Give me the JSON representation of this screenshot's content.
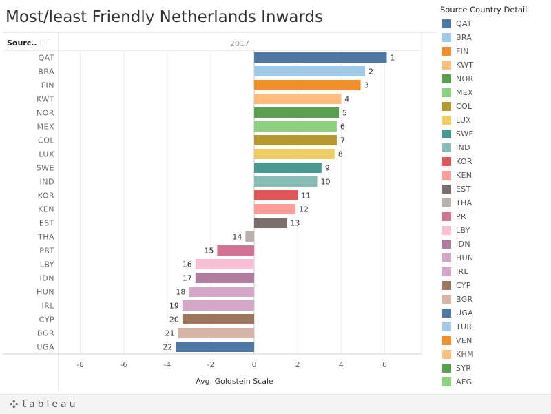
{
  "title": "Most/least Friendly Netherlands Inwards",
  "header": {
    "row_field_label": "Sourc..",
    "sort_icon": "sort-descending-icon",
    "column_value": "2017"
  },
  "legend": {
    "title": "Source Country Detail",
    "items": [
      {
        "label": "QAT",
        "color": "#4e79a7"
      },
      {
        "label": "BRA",
        "color": "#a0cbe8"
      },
      {
        "label": "FIN",
        "color": "#f28e2b"
      },
      {
        "label": "KWT",
        "color": "#ffbe7d"
      },
      {
        "label": "NOR",
        "color": "#59a14f"
      },
      {
        "label": "MEX",
        "color": "#8cd17d"
      },
      {
        "label": "COL",
        "color": "#b6992d"
      },
      {
        "label": "LUX",
        "color": "#f1ce63"
      },
      {
        "label": "SWE",
        "color": "#499894"
      },
      {
        "label": "IND",
        "color": "#86bcb6"
      },
      {
        "label": "KOR",
        "color": "#e15759"
      },
      {
        "label": "KEN",
        "color": "#ff9d9a"
      },
      {
        "label": "EST",
        "color": "#79706e"
      },
      {
        "label": "THA",
        "color": "#bab0ac"
      },
      {
        "label": "PRT",
        "color": "#d37295"
      },
      {
        "label": "LBY",
        "color": "#fabfd2"
      },
      {
        "label": "IDN",
        "color": "#b07aa1"
      },
      {
        "label": "HUN",
        "color": "#d4a6c8"
      },
      {
        "label": "IRL",
        "color": "#d4a6c8"
      },
      {
        "label": "CYP",
        "color": "#9d7660"
      },
      {
        "label": "BGR",
        "color": "#d7b5a6"
      },
      {
        "label": "UGA",
        "color": "#4e79a7"
      },
      {
        "label": "TUR",
        "color": "#a0cbe8"
      },
      {
        "label": "VEN",
        "color": "#f28e2b"
      },
      {
        "label": "KHM",
        "color": "#ffbe7d"
      },
      {
        "label": "SYR",
        "color": "#59a14f"
      },
      {
        "label": "AFG",
        "color": "#8cd17d"
      },
      {
        "label": "",
        "color": "#b6992d"
      }
    ]
  },
  "chart_data": {
    "type": "bar",
    "orientation": "horizontal",
    "title": "Most/least Friendly Netherlands Inwards",
    "column_header": "2017",
    "xlabel": "Avg. Goldstein Scale",
    "xlim": [
      -9,
      7.7
    ],
    "xticks": [
      -8,
      -6,
      -4,
      -2,
      0,
      2,
      4,
      6
    ],
    "grid": true,
    "legend_position": "right",
    "categories": [
      "QAT",
      "BRA",
      "FIN",
      "KWT",
      "NOR",
      "MEX",
      "COL",
      "LUX",
      "SWE",
      "IND",
      "KOR",
      "KEN",
      "EST",
      "THA",
      "PRT",
      "LBY",
      "IDN",
      "HUN",
      "IRL",
      "CYP",
      "BGR",
      "UGA"
    ],
    "values": [
      6.1,
      5.1,
      4.9,
      4.0,
      3.9,
      3.8,
      3.8,
      3.7,
      3.1,
      2.9,
      2.0,
      1.9,
      1.5,
      -0.4,
      -1.7,
      -2.7,
      -2.7,
      -3.0,
      -3.3,
      -3.3,
      -3.5,
      -3.6
    ],
    "data_labels": [
      "1",
      "2",
      "3",
      "4",
      "5",
      "6",
      "7",
      "8",
      "9",
      "10",
      "11",
      "12",
      "13",
      "14",
      "15",
      "16",
      "17",
      "18",
      "19",
      "20",
      "21",
      "22"
    ],
    "colors": [
      "#4e79a7",
      "#a0cbe8",
      "#f28e2b",
      "#ffbe7d",
      "#59a14f",
      "#8cd17d",
      "#b6992d",
      "#f1ce63",
      "#499894",
      "#86bcb6",
      "#e15759",
      "#ff9d9a",
      "#79706e",
      "#bab0ac",
      "#d37295",
      "#fabfd2",
      "#b07aa1",
      "#d4a6c8",
      "#d4a6c8",
      "#9d7660",
      "#d7b5a6",
      "#4e79a7"
    ]
  },
  "footer": {
    "logo_icon": "tableau-plus-icon",
    "logo_text": "tableau"
  }
}
